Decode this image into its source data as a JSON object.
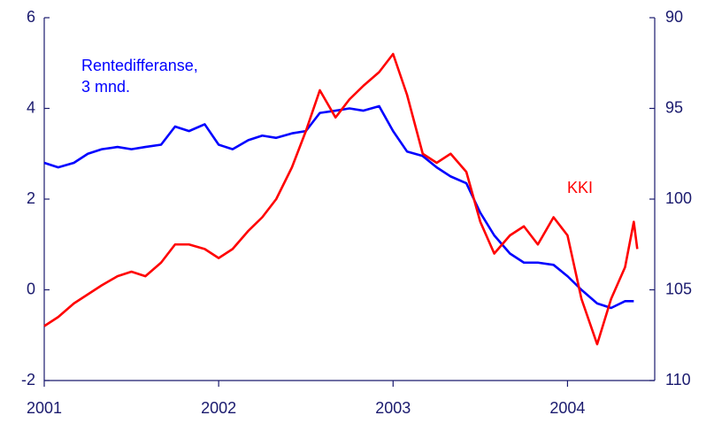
{
  "chart_data": {
    "type": "line",
    "xlim": [
      2001,
      2004.5
    ],
    "xticks": [
      2001,
      2002,
      2003,
      2004
    ],
    "ylim": [
      -2,
      6
    ],
    "yticks": [
      -2,
      0,
      2,
      4,
      6
    ],
    "y2lim": [
      110,
      90
    ],
    "y2ticks": [
      90,
      95,
      100,
      105,
      110
    ],
    "annotations": [
      {
        "text": "Rentedifferanse,",
        "color": "#0000ff"
      },
      {
        "text": "3 mnd.",
        "color": "#0000ff"
      },
      {
        "text": "KKI",
        "color": "#ff0000"
      }
    ],
    "series": [
      {
        "color": "#0000ff",
        "x": [
          2001.0,
          2001.08,
          2001.17,
          2001.25,
          2001.33,
          2001.42,
          2001.5,
          2001.58,
          2001.67,
          2001.75,
          2001.83,
          2001.92,
          2002.0,
          2002.08,
          2002.17,
          2002.25,
          2002.33,
          2002.42,
          2002.5,
          2002.58,
          2002.67,
          2002.75,
          2002.83,
          2002.92,
          2003.0,
          2003.08,
          2003.17,
          2003.25,
          2003.33,
          2003.42,
          2003.5,
          2003.58,
          2003.67,
          2003.75,
          2003.83,
          2003.92,
          2004.0,
          2004.08,
          2004.17,
          2004.25,
          2004.33,
          2004.38
        ],
        "values": [
          2.8,
          2.7,
          2.8,
          3.0,
          3.1,
          3.15,
          3.1,
          3.15,
          3.2,
          3.6,
          3.5,
          3.65,
          3.2,
          3.1,
          3.3,
          3.4,
          3.35,
          3.45,
          3.5,
          3.9,
          3.95,
          4.0,
          3.95,
          4.05,
          3.5,
          3.05,
          2.95,
          2.7,
          2.5,
          2.35,
          1.7,
          1.2,
          0.8,
          0.6,
          0.6,
          0.55,
          0.3,
          0.0,
          -0.3,
          -0.4,
          -0.25,
          -0.25
        ]
      },
      {
        "color": "#ff0000",
        "axis": "y2",
        "x": [
          2001.0,
          2001.08,
          2001.17,
          2001.25,
          2001.33,
          2001.42,
          2001.5,
          2001.58,
          2001.67,
          2001.75,
          2001.83,
          2001.92,
          2002.0,
          2002.08,
          2002.17,
          2002.25,
          2002.33,
          2002.42,
          2002.5,
          2002.58,
          2002.67,
          2002.75,
          2002.83,
          2002.92,
          2003.0,
          2003.08,
          2003.17,
          2003.25,
          2003.33,
          2003.42,
          2003.5,
          2003.58,
          2003.67,
          2003.75,
          2003.83,
          2003.92,
          2004.0,
          2004.08,
          2004.17,
          2004.25,
          2004.33,
          2004.38,
          2004.4
        ],
        "values": [
          107,
          106.5,
          105.75,
          105.25,
          104.75,
          104.25,
          104,
          104.25,
          103.5,
          102.5,
          102.5,
          102.75,
          103.25,
          102.75,
          101.75,
          101,
          100,
          98.25,
          96.25,
          94,
          95.5,
          94.5,
          93.75,
          93,
          92,
          94.25,
          97.5,
          98,
          97.5,
          98.5,
          101.25,
          103,
          102,
          101.5,
          102.5,
          101,
          102,
          105.5,
          108,
          105.5,
          103.75,
          101.25,
          102.75
        ]
      }
    ]
  }
}
